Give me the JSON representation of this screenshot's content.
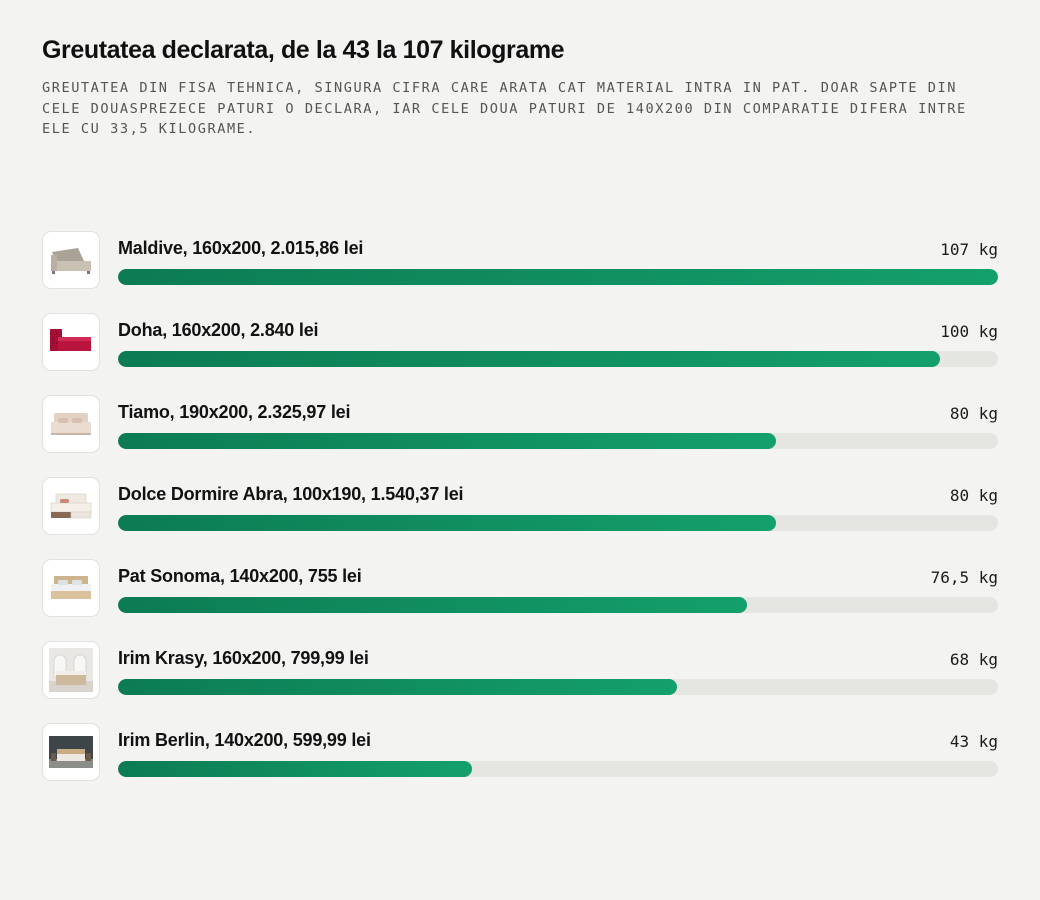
{
  "chart_data": {
    "type": "bar",
    "orientation": "horizontal",
    "title": "Greutatea declarata, de la 43 la 107 kilograme",
    "subtitle": "Greutatea din fisa tehnica, singura cifra care arata cat material intra in pat. Doar sapte din cele douasprezece paturi o declara, iar cele doua paturi de 140x200 din comparatie difera intre ele cu 33,5 kilograme.",
    "unit": "kg",
    "xlim": [
      0,
      107
    ],
    "grid": false,
    "bar_color": "#0f8c5e",
    "track_color": "#e5e6e1",
    "items": [
      {
        "label": "Maldive, 160x200, 2.015,86 lei",
        "value": 107,
        "display": "107 kg",
        "thumb_icon": "storage-bed-icon",
        "bed_color": "#b9b2a3"
      },
      {
        "label": "Doha, 160x200, 2.840 lei",
        "value": 100,
        "display": "100 kg",
        "thumb_icon": "tufted-bed-icon",
        "bed_color": "#b0123b"
      },
      {
        "label": "Tiamo, 190x200, 2.325,97 lei",
        "value": 80,
        "display": "80 kg",
        "thumb_icon": "upholstered-bed-icon",
        "bed_color": "#e6d6c9"
      },
      {
        "label": "Dolce Dormire Abra, 100x190, 1.540,37 lei",
        "value": 80,
        "display": "80 kg",
        "thumb_icon": "drawer-bed-icon",
        "bed_color": "#ece6df"
      },
      {
        "label": "Pat Sonoma, 140x200, 755 lei",
        "value": 76.5,
        "display": "76,5 kg",
        "thumb_icon": "wooden-bed-icon",
        "bed_color": "#d8c3a0"
      },
      {
        "label": "Irim Krasy, 160x200, 799,99 lei",
        "value": 68,
        "display": "68 kg",
        "thumb_icon": "room-bed-icon",
        "bed_color": "#cdb99c"
      },
      {
        "label": "Irim Berlin, 140x200, 599,99 lei",
        "value": 43,
        "display": "43 kg",
        "thumb_icon": "dark-room-bed-icon",
        "bed_color": "#c9ab82"
      }
    ]
  }
}
